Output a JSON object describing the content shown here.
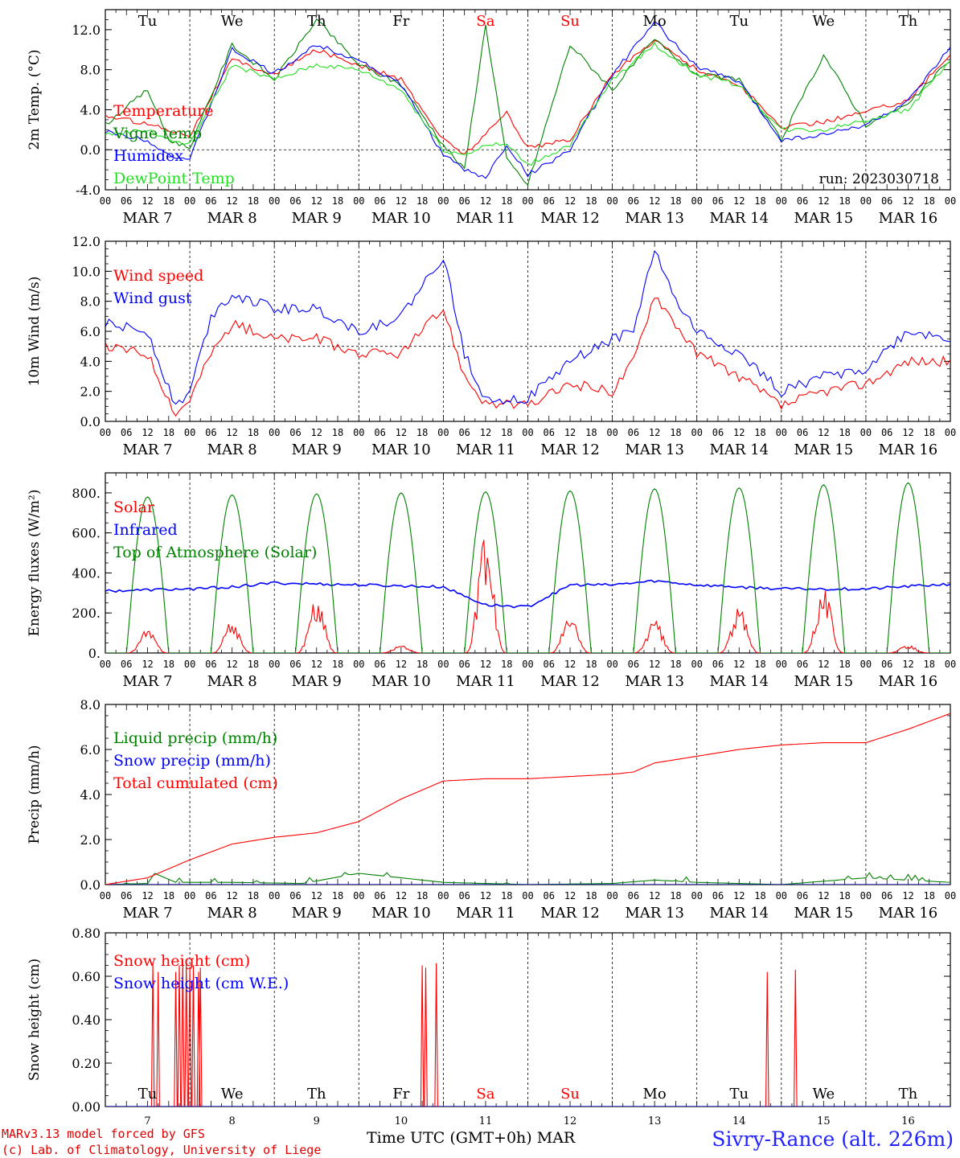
{
  "colors": {
    "red": "#ff0000",
    "green": "#008000",
    "blue": "#0000ff",
    "lightgreen": "#22dd22",
    "weekend": "#ff0000"
  },
  "days_top": [
    "Tu",
    "We",
    "Th",
    "Fr",
    "Sa",
    "Su",
    "Mo",
    "Tu",
    "We",
    "Th"
  ],
  "weekend_index": [
    4,
    5
  ],
  "hour_ticks": [
    "00",
    "06",
    "12",
    "18"
  ],
  "date_labels": [
    "MAR  7",
    "MAR  8",
    "MAR  9",
    "MAR 10",
    "MAR 11",
    "MAR 12",
    "MAR 13",
    "MAR 14",
    "MAR 15",
    "MAR 16"
  ],
  "bottom_day_numbers": [
    "7",
    "8",
    "9",
    "10",
    "11",
    "12",
    "13",
    "14",
    "15",
    "16"
  ],
  "footer": {
    "model": "MARv3.13 model forced by GFS",
    "lab": "(c) Lab. of Climatology, University of Liege",
    "axis_title": "Time UTC (GMT+0h)",
    "month": "MAR",
    "site": "Sivry-Rance (alt. 226m)"
  },
  "chart_data": [
    {
      "type": "line",
      "ylabel": "2m Temp. (°C)",
      "ylim": [
        -4,
        14
      ],
      "yticks": [
        "-4.0",
        "0.0",
        "4.0",
        "8.0",
        "12.0"
      ],
      "ytick_values": [
        -4,
        0,
        4,
        8,
        12
      ],
      "run_label": "run: 2023030718",
      "x_unit": "hours since MAR 7 00 UTC",
      "series": [
        {
          "name": "Temperature",
          "color": "red",
          "x": [
            0,
            12,
            18,
            24,
            36,
            48,
            60,
            72,
            84,
            96,
            102,
            108,
            114,
            120,
            132,
            144,
            156,
            168,
            180,
            192,
            204,
            216,
            228,
            240
          ],
          "y": [
            3.4,
            2.6,
            2.0,
            1.5,
            9.0,
            7.5,
            10.0,
            8.5,
            7.0,
            1.0,
            -0.4,
            1.5,
            3.8,
            0.2,
            1.0,
            7.5,
            11.0,
            8.0,
            6.5,
            2.2,
            2.8,
            3.8,
            5.0,
            9.5
          ]
        },
        {
          "name": "Vigne temp",
          "color": "green",
          "x": [
            0,
            12,
            18,
            24,
            36,
            48,
            60,
            72,
            84,
            96,
            102,
            108,
            114,
            120,
            132,
            144,
            156,
            168,
            180,
            192,
            204,
            216,
            228,
            240
          ],
          "y": [
            2.5,
            6.0,
            1.0,
            0.2,
            10.5,
            7.0,
            13.0,
            8.5,
            6.5,
            0.5,
            -2.0,
            12.5,
            -1.0,
            -3.5,
            10.5,
            6.0,
            11.0,
            7.5,
            7.0,
            1.0,
            9.5,
            2.5,
            4.5,
            9.0
          ]
        },
        {
          "name": "Humidex",
          "color": "blue",
          "x": [
            0,
            12,
            18,
            24,
            36,
            48,
            60,
            72,
            84,
            96,
            102,
            108,
            114,
            120,
            132,
            144,
            156,
            168,
            180,
            192,
            204,
            216,
            228,
            240
          ],
          "y": [
            1.8,
            1.0,
            -0.5,
            -1.0,
            10.0,
            7.6,
            10.5,
            9.0,
            6.5,
            -0.5,
            -2.0,
            -2.8,
            0.5,
            -2.5,
            0.0,
            7.5,
            12.7,
            8.3,
            6.8,
            1.0,
            1.5,
            2.5,
            4.8,
            10.2
          ]
        },
        {
          "name": "DewPoint Temp",
          "color": "lightgreen",
          "x": [
            0,
            12,
            18,
            24,
            36,
            48,
            60,
            72,
            84,
            96,
            102,
            108,
            114,
            120,
            132,
            144,
            156,
            168,
            180,
            192,
            204,
            216,
            228,
            240
          ],
          "y": [
            1.5,
            2.0,
            1.0,
            0.5,
            8.5,
            7.0,
            8.5,
            8.0,
            6.0,
            0.0,
            -0.5,
            0.5,
            0.5,
            -1.5,
            0.5,
            7.0,
            10.5,
            7.5,
            6.5,
            2.0,
            2.0,
            3.0,
            4.0,
            9.0
          ]
        }
      ]
    },
    {
      "type": "line",
      "ylabel": "10m Wind (m/s)",
      "ylim": [
        0,
        12
      ],
      "yticks": [
        "0.0",
        "2.0",
        "4.0",
        "6.0",
        "8.0",
        "10.0",
        "12.0"
      ],
      "ytick_values": [
        0,
        2,
        4,
        6,
        8,
        10,
        12
      ],
      "series": [
        {
          "name": "Wind speed",
          "color": "red",
          "x": [
            0,
            12,
            20,
            24,
            30,
            36,
            48,
            60,
            72,
            84,
            96,
            102,
            108,
            120,
            132,
            144,
            150,
            156,
            162,
            168,
            180,
            192,
            204,
            216,
            228,
            240
          ],
          "y": [
            5.0,
            4.5,
            0.5,
            1.5,
            4.5,
            6.5,
            5.5,
            5.5,
            4.5,
            4.5,
            7.5,
            3.0,
            1.2,
            1.0,
            2.5,
            2.0,
            4.0,
            8.5,
            6.5,
            4.5,
            3.0,
            1.0,
            2.0,
            2.5,
            4.0,
            4.0
          ]
        },
        {
          "name": "Wind gust",
          "color": "blue",
          "x": [
            0,
            12,
            20,
            24,
            30,
            36,
            48,
            60,
            72,
            84,
            96,
            102,
            108,
            120,
            132,
            144,
            150,
            156,
            162,
            168,
            180,
            192,
            204,
            216,
            228,
            240
          ],
          "y": [
            6.5,
            6.0,
            1.0,
            2.0,
            7.0,
            8.5,
            7.5,
            7.5,
            6.0,
            7.0,
            11.0,
            4.5,
            1.5,
            1.5,
            4.0,
            5.5,
            6.0,
            11.5,
            8.0,
            6.0,
            4.5,
            2.0,
            3.0,
            3.5,
            6.0,
            5.5
          ]
        }
      ]
    },
    {
      "type": "line",
      "ylabel": "Energy fluxes (W/m²)",
      "ylim": [
        0,
        900
      ],
      "yticks": [
        "0.",
        "200.",
        "400.",
        "600.",
        "800."
      ],
      "ytick_values": [
        0,
        200,
        400,
        600,
        800
      ],
      "series": [
        {
          "name": "Solar",
          "color": "red",
          "peaks": [
            120,
            160,
            280,
            40,
            590,
            190,
            170,
            230,
            340,
            40
          ]
        },
        {
          "name": "Infrared",
          "color": "blue",
          "x": [
            0,
            24,
            36,
            48,
            72,
            96,
            108,
            120,
            132,
            144,
            156,
            168,
            192,
            216,
            240
          ],
          "y": [
            310,
            320,
            330,
            350,
            340,
            330,
            240,
            230,
            340,
            340,
            360,
            340,
            320,
            320,
            345
          ]
        },
        {
          "name": "Top of Atmosphere (Solar)",
          "color": "green",
          "peaks": [
            780,
            790,
            795,
            800,
            805,
            810,
            820,
            825,
            840,
            850
          ]
        }
      ]
    },
    {
      "type": "line",
      "ylabel": "Precip (mm/h)",
      "ylim": [
        0,
        8
      ],
      "yticks": [
        "0.0",
        "2.0",
        "4.0",
        "6.0",
        "8.0"
      ],
      "ytick_values": [
        0,
        2,
        4,
        6,
        8
      ],
      "series": [
        {
          "name": "Liquid precip (mm/h)",
          "color": "green",
          "x": [
            0,
            12,
            14,
            20,
            36,
            56,
            72,
            84,
            96,
            120,
            144,
            156,
            168,
            192,
            216,
            240
          ],
          "y": [
            0,
            0.05,
            0.5,
            0.1,
            0.1,
            0.05,
            0.5,
            0.3,
            0.1,
            0,
            0.05,
            0.2,
            0.1,
            0,
            0.3,
            0.1
          ]
        },
        {
          "name": "Snow precip (mm/h)",
          "color": "blue",
          "x": [
            0,
            240
          ],
          "y": [
            0,
            0
          ]
        },
        {
          "name": "Total cumulated (cm)",
          "color": "red",
          "x": [
            0,
            12,
            24,
            36,
            48,
            60,
            72,
            84,
            96,
            108,
            120,
            132,
            144,
            150,
            156,
            168,
            180,
            192,
            204,
            216,
            228,
            240
          ],
          "y": [
            0,
            0.3,
            1.1,
            1.8,
            2.1,
            2.3,
            2.8,
            3.8,
            4.6,
            4.7,
            4.7,
            4.8,
            4.9,
            5.0,
            5.4,
            5.7,
            6.0,
            6.2,
            6.3,
            6.3,
            6.9,
            7.6
          ]
        }
      ]
    },
    {
      "type": "line",
      "ylabel": "Snow height (cm)",
      "ylim": [
        0,
        0.8
      ],
      "yticks": [
        "0.00",
        "0.20",
        "0.40",
        "0.60",
        "0.80"
      ],
      "ytick_values": [
        0,
        0.2,
        0.4,
        0.6,
        0.8
      ],
      "series": [
        {
          "name": "Snow height (cm)",
          "color": "red",
          "spikes_x": [
            13.5,
            15,
            20,
            21,
            22,
            23,
            24,
            25,
            26.5,
            27,
            90,
            91,
            94,
            188,
            196
          ],
          "spikes_y": [
            0.66,
            0.62,
            0.62,
            0.65,
            0.68,
            0.66,
            0.64,
            0.65,
            0.62,
            0.64,
            0.65,
            0.64,
            0.66,
            0.62,
            0.63
          ]
        },
        {
          "name": "Snow height (cm W.E.)",
          "color": "blue",
          "x": [
            0,
            240
          ],
          "y": [
            0,
            0
          ]
        }
      ]
    }
  ]
}
